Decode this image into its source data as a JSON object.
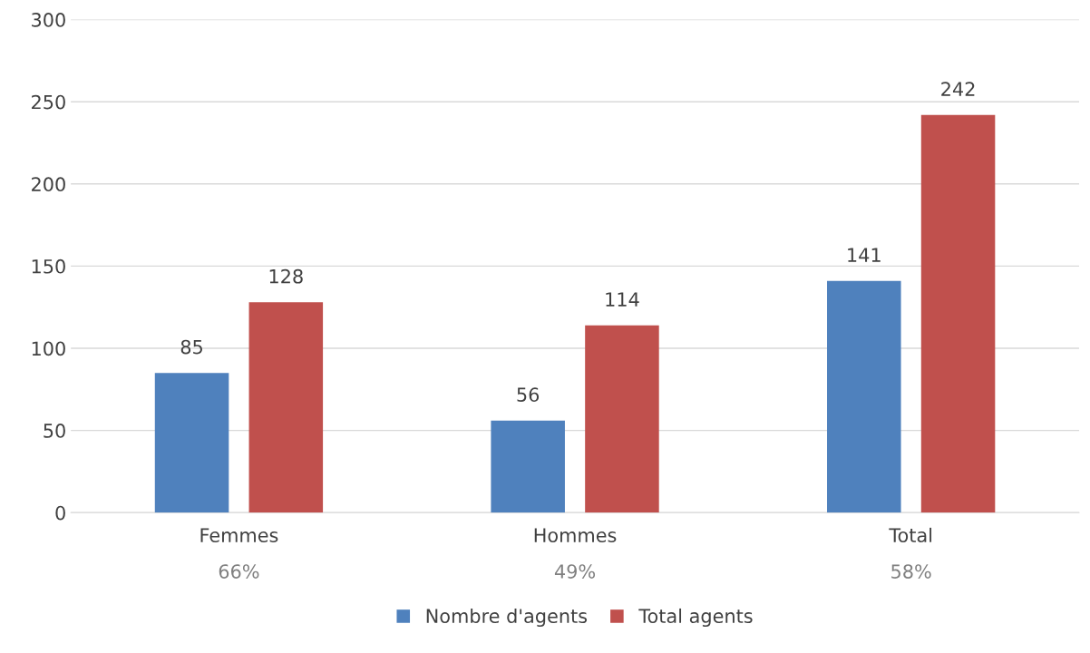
{
  "chart_data": {
    "type": "bar",
    "categories": [
      "Femmes",
      "Hommes",
      "Total"
    ],
    "series": [
      {
        "name": "Nombre d'agents",
        "color": "#4f81bd",
        "values": [
          85,
          56,
          141
        ]
      },
      {
        "name": "Total agents",
        "color": "#c0504d",
        "values": [
          128,
          114,
          242
        ]
      }
    ],
    "ylim": [
      0,
      300
    ],
    "yticks": [
      0,
      50,
      100,
      150,
      200,
      250,
      300
    ],
    "grid": "y",
    "legend": "bottom",
    "data_labels": true,
    "annotations": [
      "66%",
      "49%",
      "58%"
    ]
  }
}
